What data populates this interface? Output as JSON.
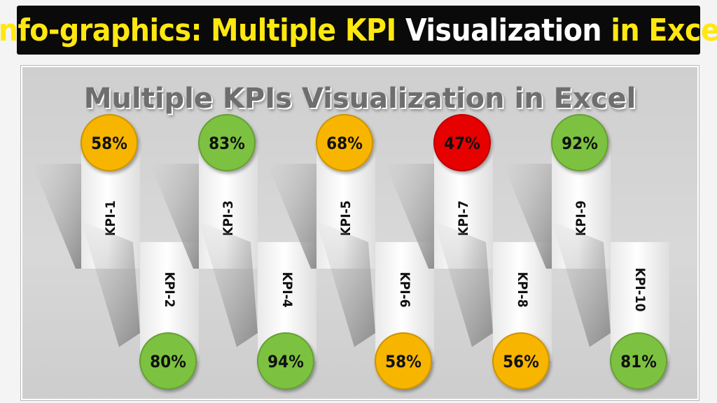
{
  "header": {
    "title_parts": [
      {
        "text": "Info-graphics: Multiple KPI ",
        "color": "#ffe810"
      },
      {
        "text": "Visualization ",
        "color": "#ffffff"
      },
      {
        "text": "in Excel",
        "color": "#ffe810"
      }
    ]
  },
  "chart_data": {
    "type": "infographic",
    "title": "Multiple KPIs Visualization in Excel",
    "categories": [
      "KPI-1",
      "KPI-2",
      "KPI-3",
      "KPI-4",
      "KPI-5",
      "KPI-6",
      "KPI-7",
      "KPI-8",
      "KPI-9",
      "KPI-10"
    ],
    "value_labels": [
      "58%",
      "80%",
      "83%",
      "94%",
      "68%",
      "58%",
      "47%",
      "56%",
      "92%",
      "81%"
    ],
    "values": [
      0.58,
      0.8,
      0.83,
      0.94,
      0.68,
      0.58,
      0.47,
      0.56,
      0.92,
      0.81
    ],
    "status_colors": {
      "green": "#7cc241",
      "amber": "#f7b500",
      "red": "#e60000"
    },
    "thresholds": {
      "red_below": 0.5,
      "green_from": 0.8
    }
  }
}
